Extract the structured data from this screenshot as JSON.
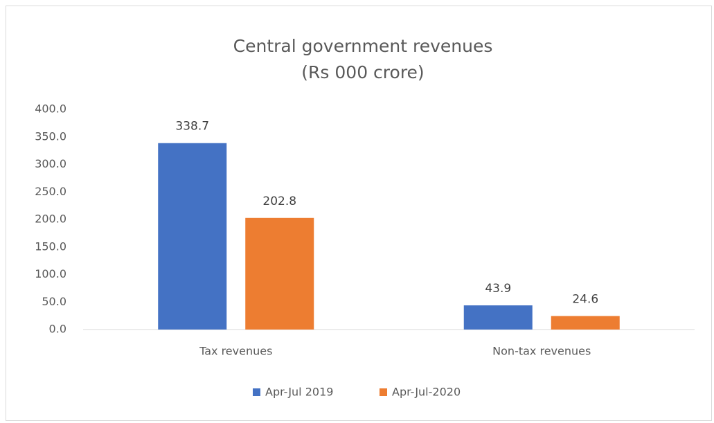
{
  "chart_data": {
    "type": "bar",
    "title": "Central government revenues",
    "subtitle": "(Rs 000 crore)",
    "categories": [
      "Tax revenues",
      "Non-tax revenues"
    ],
    "series": [
      {
        "name": "Apr-Jul 2019",
        "color": "#4472c4",
        "values": [
          338.7,
          43.9
        ]
      },
      {
        "name": "Apr-Jul-2020",
        "color": "#ed7d31",
        "values": [
          202.8,
          24.6
        ]
      }
    ],
    "ylim": [
      0,
      400
    ],
    "yticks": [
      {
        "value": 0,
        "label": "0.0"
      },
      {
        "value": 50,
        "label": "50.0"
      },
      {
        "value": 100,
        "label": "100.0"
      },
      {
        "value": 150,
        "label": "150.0"
      },
      {
        "value": 200,
        "label": "200.0"
      },
      {
        "value": 250,
        "label": "250.0"
      },
      {
        "value": 300,
        "label": "300.0"
      },
      {
        "value": 350,
        "label": "350.0"
      },
      {
        "value": 400,
        "label": "400.0"
      }
    ],
    "grid": false,
    "legend": "bottom"
  }
}
